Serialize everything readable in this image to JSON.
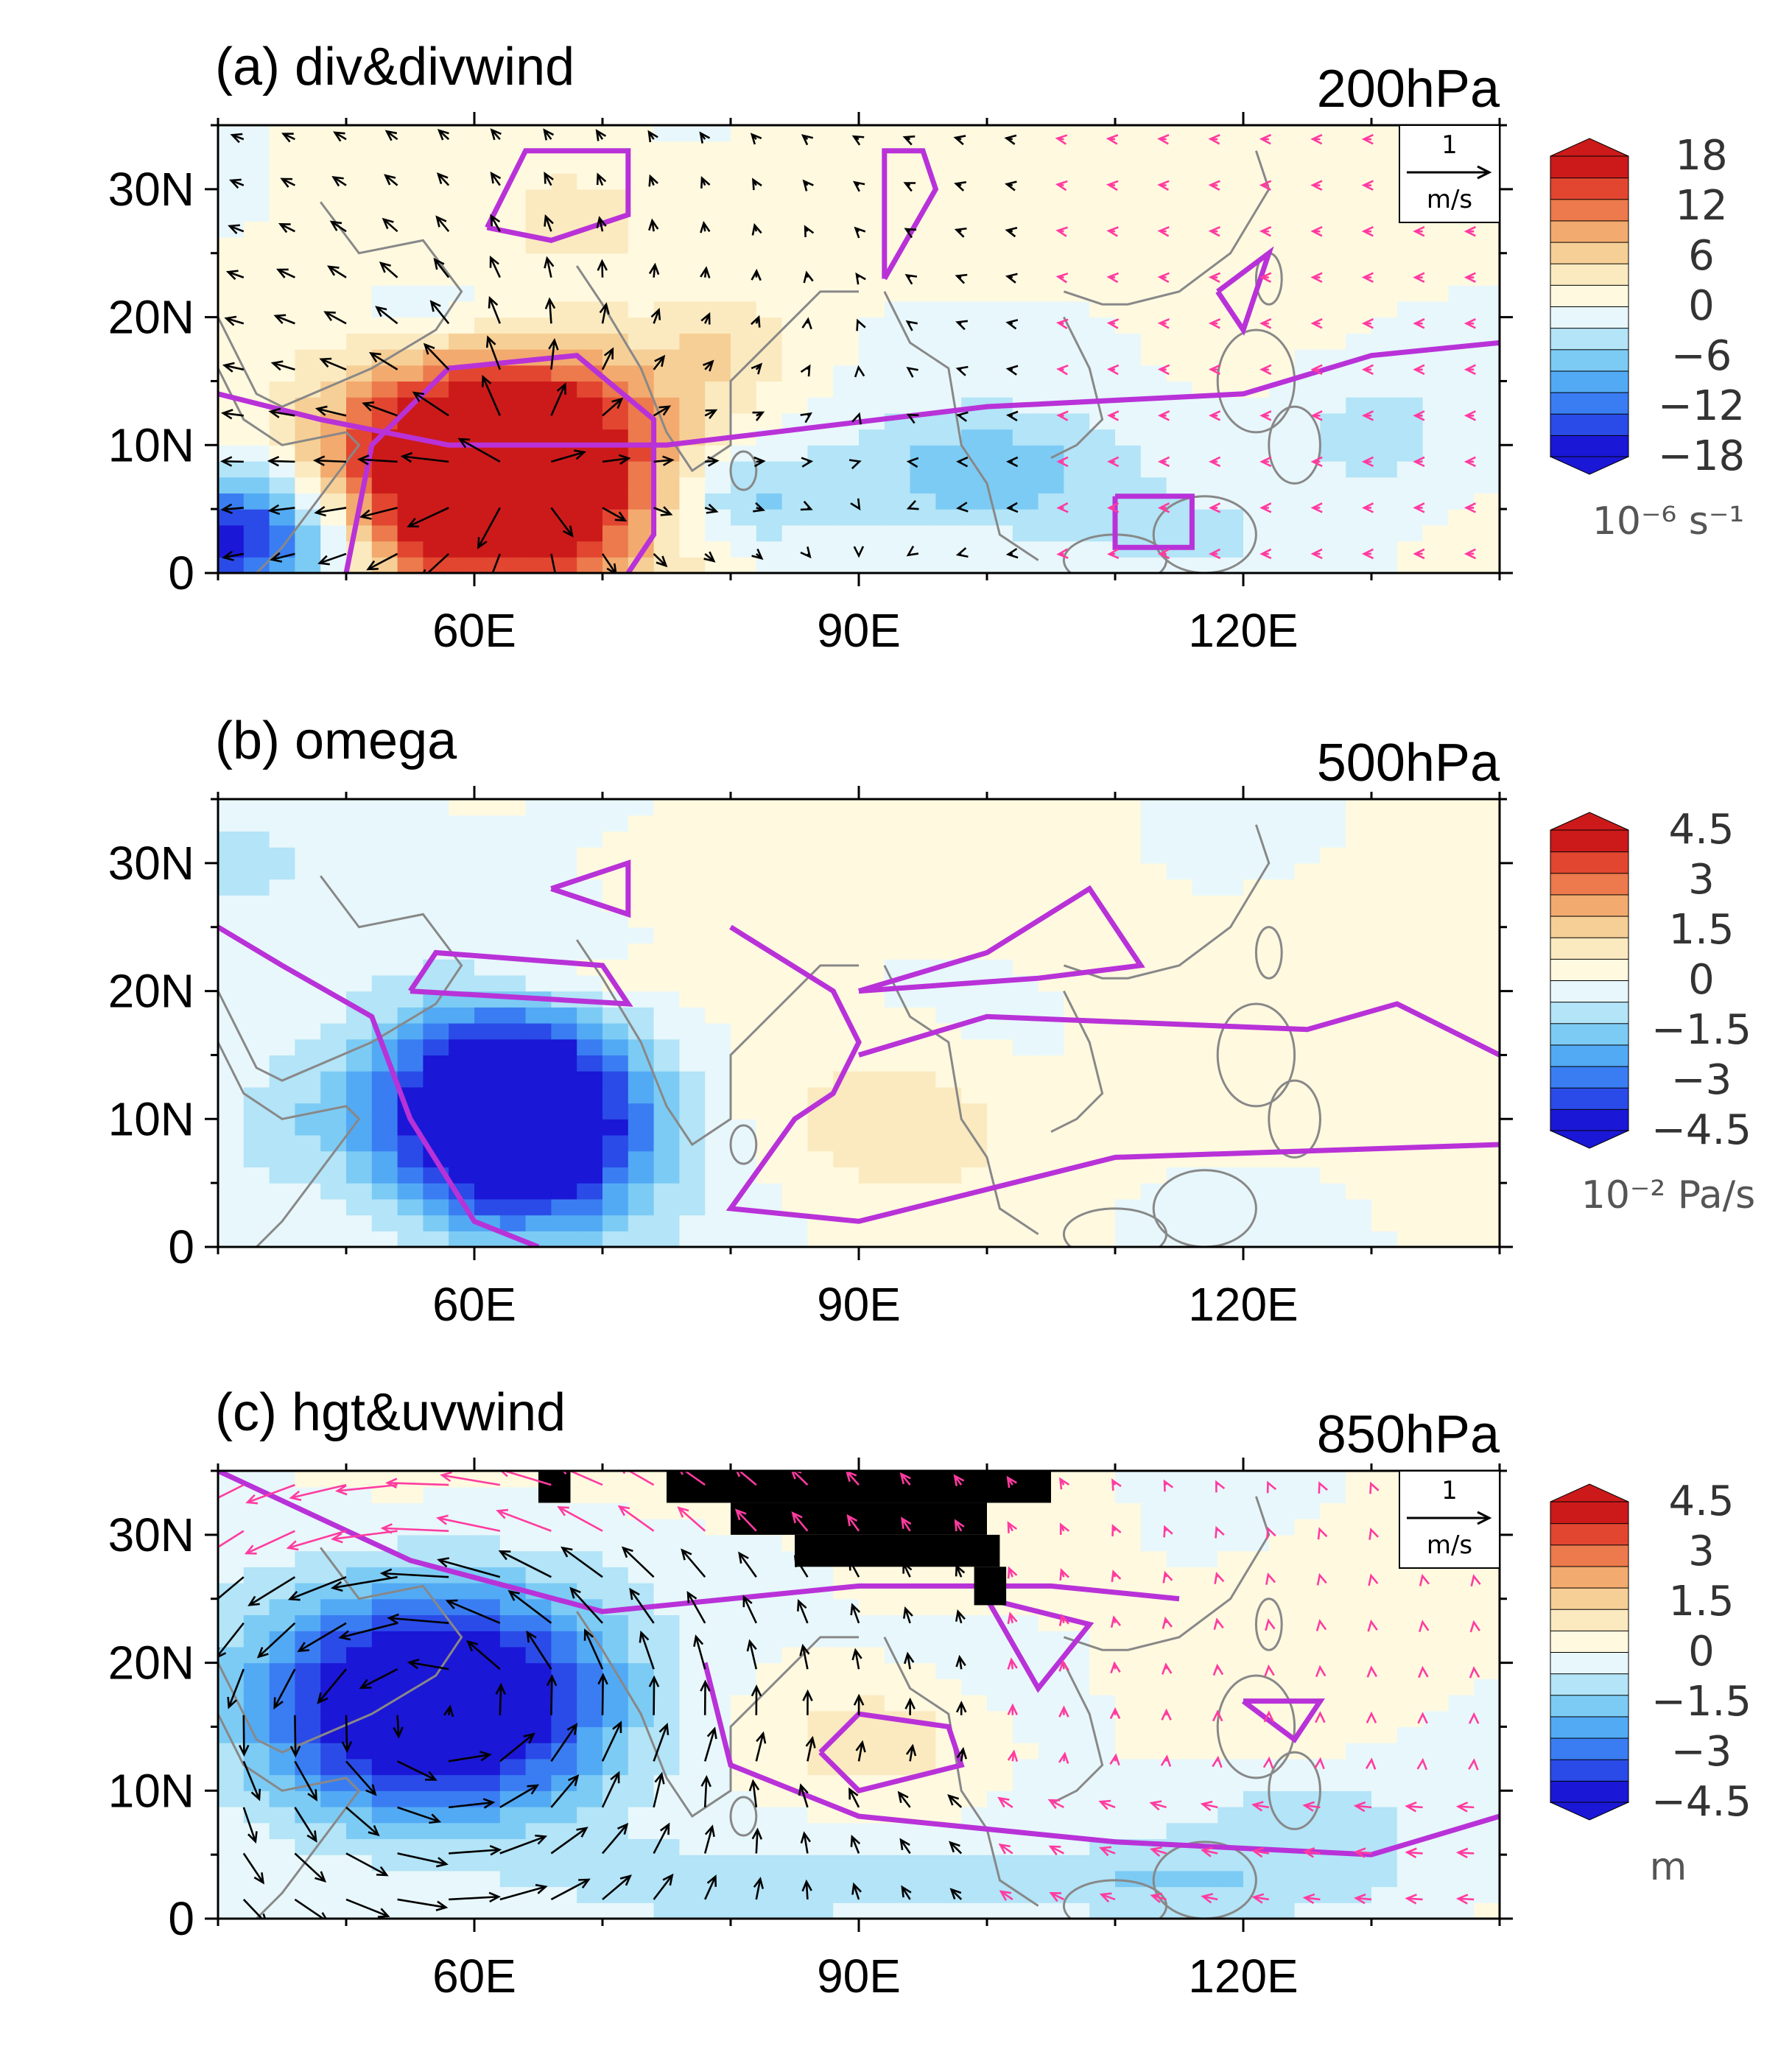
{
  "chart_data": [
    {
      "type": "heatmap",
      "title": "(a) div&divwind",
      "level": "200hPa",
      "x_tick_labels": [
        "60E",
        "90E",
        "120E"
      ],
      "y_tick_labels": [
        "0",
        "10N",
        "20N",
        "30N"
      ],
      "xlim": [
        40,
        140
      ],
      "ylim": [
        0,
        35
      ],
      "colorbar_labels": [
        "18",
        "12",
        "6",
        "0",
        "−6",
        "−12",
        "−18"
      ],
      "colorbar_range": [
        -18,
        18
      ],
      "colorbar_unit": "10⁻⁶ s⁻¹",
      "reference_vector": {
        "value": "1",
        "unit": "m/s"
      },
      "features": [
        {
          "kind": "divergence_max",
          "lon": 62,
          "lat": 8,
          "value": 18
        },
        {
          "kind": "convergence_min",
          "lon": 42,
          "lat": 3,
          "value": -15
        }
      ]
    },
    {
      "type": "heatmap",
      "title": "(b) omega",
      "level": "500hPa",
      "x_tick_labels": [
        "60E",
        "90E",
        "120E"
      ],
      "y_tick_labels": [
        "0",
        "10N",
        "20N",
        "30N"
      ],
      "xlim": [
        40,
        140
      ],
      "ylim": [
        0,
        35
      ],
      "colorbar_labels": [
        "4.5",
        "3",
        "1.5",
        "0",
        "−1.5",
        "−3",
        "−4.5"
      ],
      "colorbar_range": [
        -4.5,
        4.5
      ],
      "colorbar_unit": "10⁻² Pa/s",
      "features": [
        {
          "kind": "ascent_min",
          "lon": 63,
          "lat": 10,
          "value": -4.5
        },
        {
          "kind": "descent_max",
          "lon": 93,
          "lat": 10,
          "value": 1
        }
      ]
    },
    {
      "type": "heatmap",
      "title": "(c) hgt&uvwind",
      "level": "850hPa",
      "x_tick_labels": [
        "60E",
        "90E",
        "120E"
      ],
      "y_tick_labels": [
        "0",
        "10N",
        "20N",
        "30N"
      ],
      "xlim": [
        40,
        140
      ],
      "ylim": [
        0,
        35
      ],
      "colorbar_labels": [
        "4.5",
        "3",
        "1.5",
        "0",
        "−1.5",
        "−3",
        "−4.5"
      ],
      "colorbar_range": [
        -4.5,
        4.5
      ],
      "colorbar_unit": "m",
      "reference_vector": {
        "value": "1",
        "unit": "m/s"
      },
      "features": [
        {
          "kind": "height_min",
          "lon": 58,
          "lat": 17,
          "value": -4.5
        },
        {
          "kind": "height_max",
          "lon": 92,
          "lat": 14,
          "value": 1
        }
      ]
    }
  ],
  "colors": {
    "contour": "#b832d8",
    "vector": "#000000",
    "vector_significant": "#ff3ba0",
    "coast": "#888888",
    "palette": [
      "#1b17d6",
      "#2a4be8",
      "#3a7df2",
      "#52aaf4",
      "#7ccbf4",
      "#b3e4f7",
      "#e8f7fb",
      "#fff9e0",
      "#fbeac0",
      "#f6cf96",
      "#f2aa6e",
      "#ec7a4c",
      "#e24630",
      "#cc1a1a"
    ]
  }
}
